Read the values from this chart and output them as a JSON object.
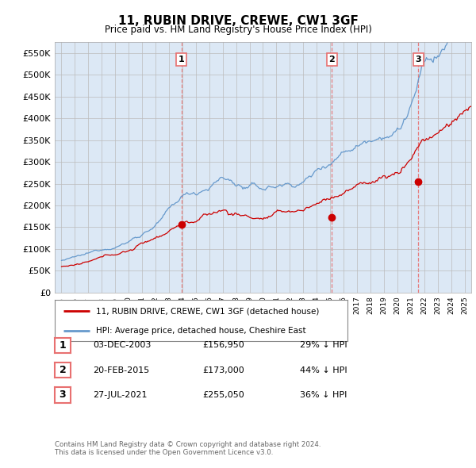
{
  "title": "11, RUBIN DRIVE, CREWE, CW1 3GF",
  "subtitle": "Price paid vs. HM Land Registry's House Price Index (HPI)",
  "footer_line1": "Contains HM Land Registry data © Crown copyright and database right 2024.",
  "footer_line2": "This data is licensed under the Open Government Licence v3.0.",
  "legend_label_red": "11, RUBIN DRIVE, CREWE, CW1 3GF (detached house)",
  "legend_label_blue": "HPI: Average price, detached house, Cheshire East",
  "sales": [
    {
      "label": "1",
      "date": "03-DEC-2003",
      "price": 156950,
      "pct": "29%",
      "x_year": 2003.92
    },
    {
      "label": "2",
      "date": "20-FEB-2015",
      "price": 173000,
      "pct": "44%",
      "x_year": 2015.13
    },
    {
      "label": "3",
      "date": "27-JUL-2021",
      "price": 255050,
      "pct": "36%",
      "x_year": 2021.56
    }
  ],
  "ylim": [
    0,
    575000
  ],
  "yticks": [
    0,
    50000,
    100000,
    150000,
    200000,
    250000,
    300000,
    350000,
    400000,
    450000,
    500000,
    550000
  ],
  "xlim_start": 1994.5,
  "xlim_end": 2025.5,
  "plot_bg_color": "#dce8f5",
  "red_color": "#cc0000",
  "blue_color": "#6699cc",
  "dashed_red_color": "#e87070"
}
